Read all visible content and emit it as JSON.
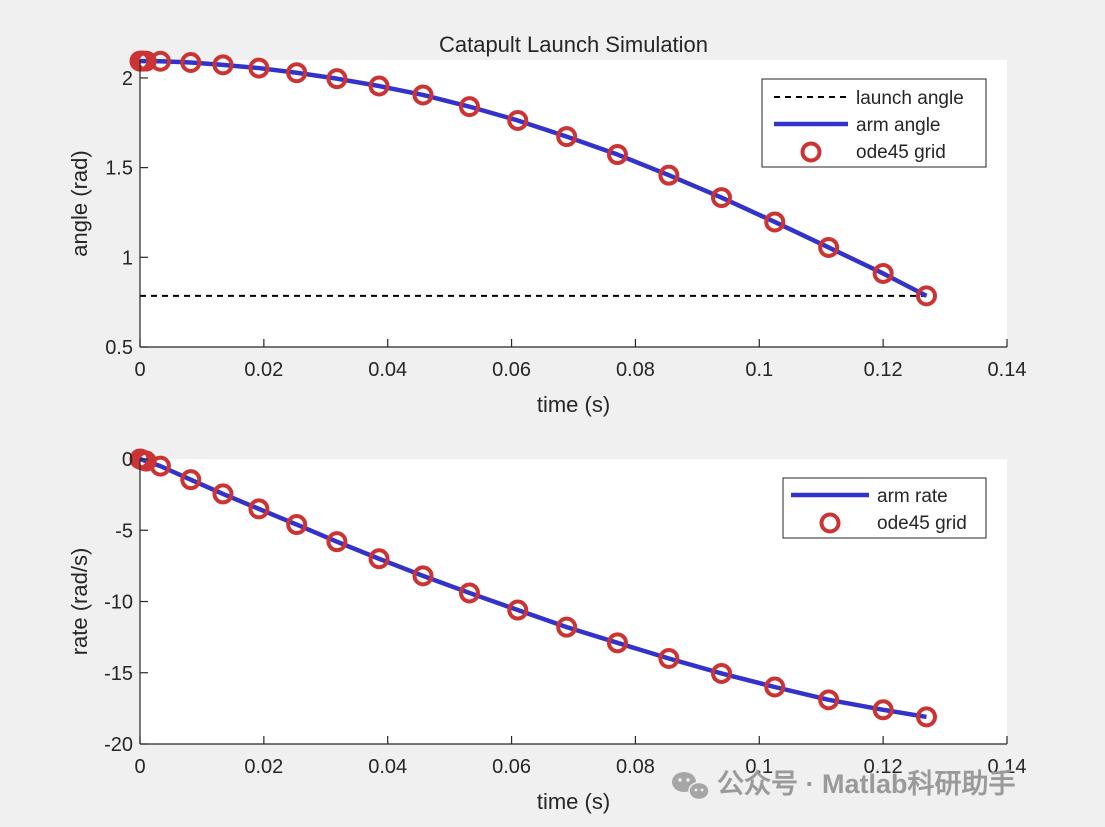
{
  "chart_data": [
    {
      "type": "line",
      "title": "Catapult Launch Simulation",
      "xlabel": "time (s)",
      "ylabel": "angle (rad)",
      "xlim": [
        0,
        0.14
      ],
      "ylim": [
        0.5,
        2.1
      ],
      "xticks": [
        0,
        0.02,
        0.04,
        0.06,
        0.08,
        0.1,
        0.12,
        0.14
      ],
      "xtick_labels": [
        "0",
        "0.02",
        "0.04",
        "0.06",
        "0.08",
        "0.1",
        "0.12",
        "0.14"
      ],
      "yticks": [
        0.5,
        1,
        1.5,
        2
      ],
      "ytick_labels": [
        "0.5",
        "1",
        "1.5",
        "2"
      ],
      "grid": false,
      "legend_position": "top-right",
      "series": [
        {
          "name": "launch angle",
          "style": "dashed",
          "color": "#000000",
          "x": [
            0,
            0.127
          ],
          "y": [
            0.785,
            0.785
          ]
        },
        {
          "name": "arm angle",
          "style": "solid",
          "color": "#3333cc",
          "x": [
            0,
            0.0002,
            0.0005,
            0.001,
            0.0033,
            0.0082,
            0.0134,
            0.0192,
            0.0253,
            0.0318,
            0.0386,
            0.0457,
            0.0532,
            0.061,
            0.0689,
            0.0771,
            0.0854,
            0.0939,
            0.1025,
            0.1112,
            0.12,
            0.127
          ],
          "y": [
            2.094,
            2.094,
            2.094,
            2.094,
            2.093,
            2.086,
            2.073,
            2.055,
            2.029,
            1.996,
            1.955,
            1.905,
            1.84,
            1.763,
            1.673,
            1.573,
            1.458,
            1.333,
            1.197,
            1.055,
            0.91,
            0.785
          ]
        },
        {
          "name": "ode45 grid",
          "style": "markers",
          "marker": "circle",
          "color": "#cc3333",
          "x": [
            0,
            0.0002,
            0.0005,
            0.001,
            0.0033,
            0.0082,
            0.0134,
            0.0192,
            0.0253,
            0.0318,
            0.0386,
            0.0457,
            0.0532,
            0.061,
            0.0689,
            0.0771,
            0.0854,
            0.0939,
            0.1025,
            0.1112,
            0.12,
            0.127
          ],
          "y": [
            2.094,
            2.094,
            2.094,
            2.094,
            2.093,
            2.086,
            2.073,
            2.055,
            2.029,
            1.996,
            1.955,
            1.905,
            1.84,
            1.763,
            1.673,
            1.573,
            1.458,
            1.333,
            1.197,
            1.055,
            0.91,
            0.785
          ]
        }
      ]
    },
    {
      "type": "line",
      "title": "",
      "xlabel": "time (s)",
      "ylabel": "rate (rad/s)",
      "xlim": [
        0,
        0.14
      ],
      "ylim": [
        -20,
        0
      ],
      "xticks": [
        0,
        0.02,
        0.04,
        0.06,
        0.08,
        0.1,
        0.12,
        0.14
      ],
      "xtick_labels": [
        "0",
        "0.02",
        "0.04",
        "0.06",
        "0.08",
        "0.1",
        "0.12",
        "0.14"
      ],
      "yticks": [
        -20,
        -15,
        -10,
        -5,
        0
      ],
      "ytick_labels": [
        "-20",
        "-15",
        "-10",
        "-5",
        "0"
      ],
      "grid": false,
      "legend_position": "top-right",
      "series": [
        {
          "name": "arm rate",
          "style": "solid",
          "color": "#3333cc",
          "x": [
            0,
            0.0002,
            0.0005,
            0.001,
            0.0033,
            0.0082,
            0.0134,
            0.0192,
            0.0253,
            0.0318,
            0.0386,
            0.0457,
            0.0532,
            0.061,
            0.0689,
            0.0771,
            0.0854,
            0.0939,
            0.1025,
            0.1112,
            0.12,
            0.127
          ],
          "y": [
            0,
            -0.03,
            -0.08,
            -0.15,
            -0.5,
            -1.45,
            -2.45,
            -3.5,
            -4.6,
            -5.8,
            -7.0,
            -8.2,
            -9.4,
            -10.6,
            -11.8,
            -12.9,
            -14.0,
            -15.05,
            -16.0,
            -16.9,
            -17.6,
            -18.1
          ]
        },
        {
          "name": "ode45 grid",
          "style": "markers",
          "marker": "circle",
          "color": "#cc3333",
          "x": [
            0,
            0.0002,
            0.0005,
            0.001,
            0.0033,
            0.0082,
            0.0134,
            0.0192,
            0.0253,
            0.0318,
            0.0386,
            0.0457,
            0.0532,
            0.061,
            0.0689,
            0.0771,
            0.0854,
            0.0939,
            0.1025,
            0.1112,
            0.12,
            0.127
          ],
          "y": [
            0,
            -0.03,
            -0.08,
            -0.15,
            -0.5,
            -1.45,
            -2.45,
            -3.5,
            -4.6,
            -5.8,
            -7.0,
            -8.2,
            -9.4,
            -10.6,
            -11.8,
            -12.9,
            -14.0,
            -15.05,
            -16.0,
            -16.9,
            -17.6,
            -18.1
          ]
        }
      ]
    }
  ],
  "watermark": {
    "text": "公众号 · Matlab科研助手",
    "icon": "wechat-icon"
  }
}
